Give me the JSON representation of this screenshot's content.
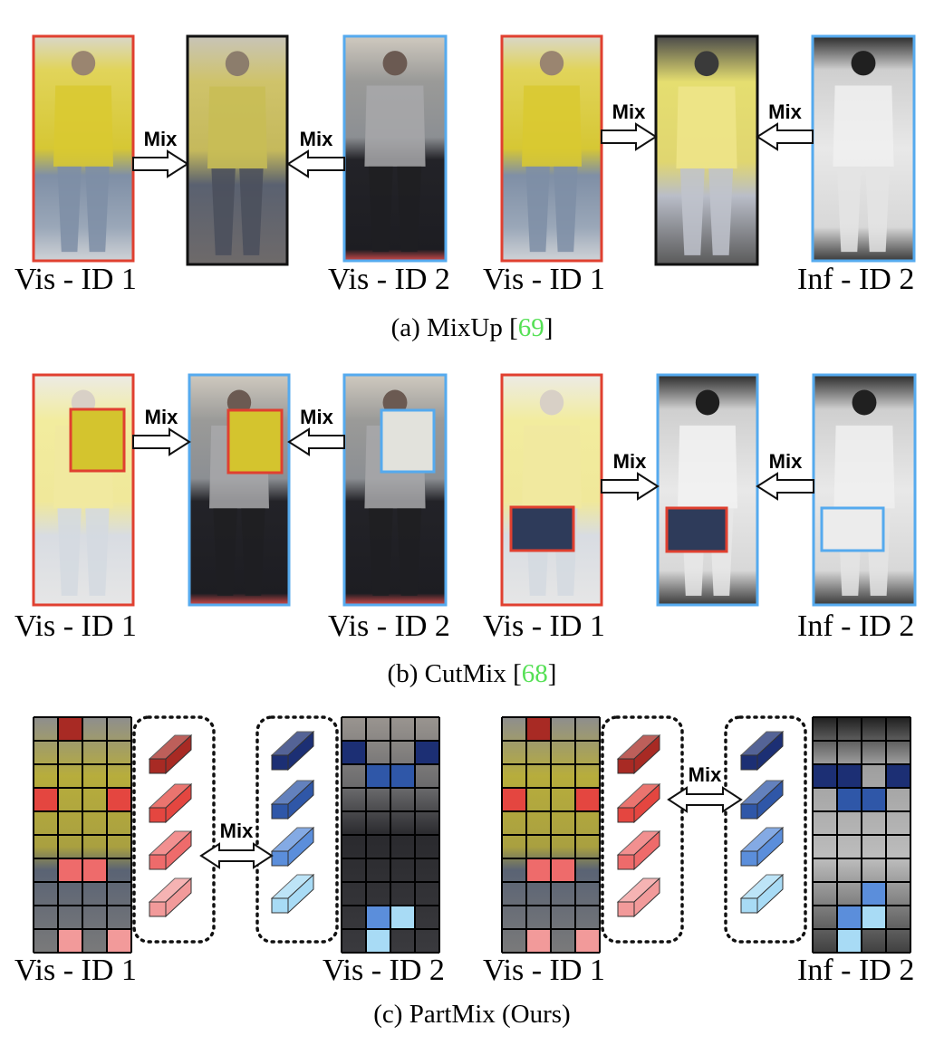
{
  "colors": {
    "vis_frame": "#e04030",
    "inf_frame": "#55aaee",
    "mix_frame": "#111111",
    "citation": "#55e055",
    "red_parts": [
      "#a82a24",
      "#e44640",
      "#ee6b6b",
      "#f29a9a"
    ],
    "blue_parts": [
      "#1c2f74",
      "#2f57a8",
      "#5b8edb",
      "#a8dbf5"
    ]
  },
  "rows": [
    {
      "id": "mixup",
      "caption_prefix": "(a) MixUp [",
      "caption_cite": "69",
      "caption_suffix": "]",
      "left_pair": {
        "label_a": "Vis - ID 1",
        "label_b": "Vis - ID 2",
        "arrow_text_left": "Mix",
        "arrow_text_right": "Mix"
      },
      "right_pair": {
        "label_a": "Vis - ID 1",
        "label_b": "Inf - ID 2",
        "arrow_text_left": "Mix",
        "arrow_text_right": "Mix"
      }
    },
    {
      "id": "cutmix",
      "caption_prefix": "(b) CutMix [",
      "caption_cite": "68",
      "caption_suffix": "]",
      "left_pair": {
        "label_a": "Vis - ID 1",
        "label_b": "Vis - ID 2",
        "arrow_text_left": "Mix",
        "arrow_text_right": "Mix"
      },
      "right_pair": {
        "label_a": "Vis - ID 1",
        "label_b": "Inf - ID 2",
        "arrow_text_left": "Mix",
        "arrow_text_right": "Mix"
      }
    },
    {
      "id": "partmix",
      "caption_prefix": "(c) PartMix (Ours)",
      "caption_cite": "",
      "caption_suffix": "",
      "left_pair": {
        "label_a": "Vis - ID 1",
        "label_b": "Vis - ID 2",
        "arrow_text": "Mix"
      },
      "right_pair": {
        "label_a": "Vis - ID 1",
        "label_b": "Inf - ID 2",
        "arrow_text": "Mix"
      }
    }
  ]
}
